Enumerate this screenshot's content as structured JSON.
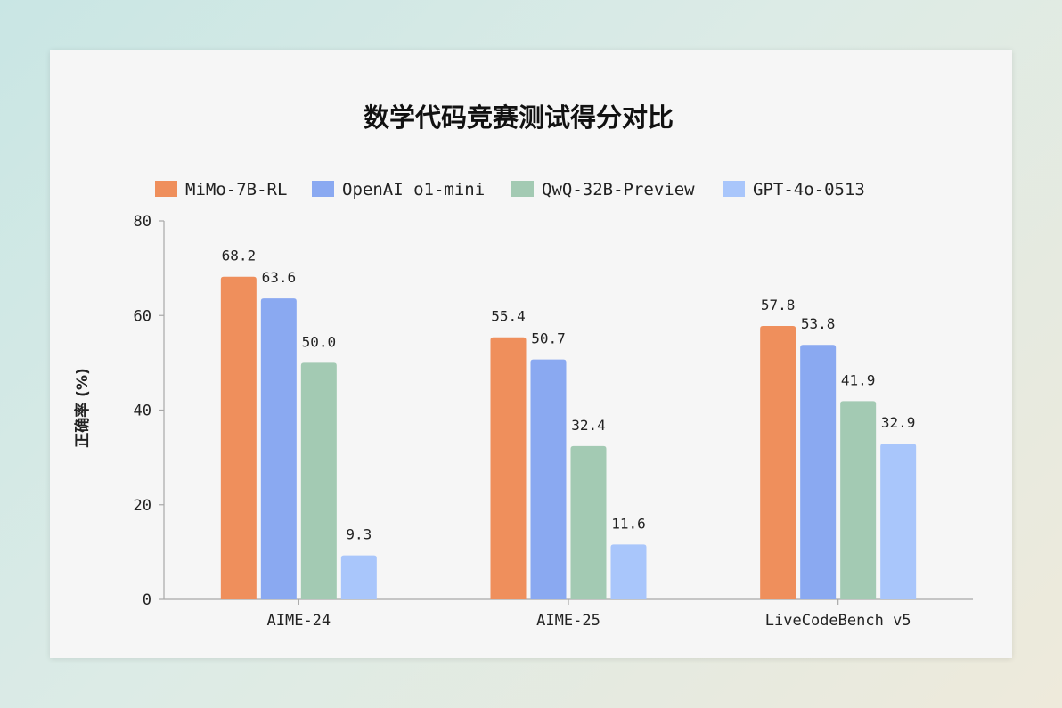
{
  "chart_data": {
    "type": "bar",
    "title": "数学代码竞赛测试得分对比",
    "ylabel": "正确率 (%)",
    "xlabel": "",
    "ylim": [
      0,
      80
    ],
    "yticks": [
      0,
      20,
      40,
      60,
      80
    ],
    "grid": false,
    "legend_position": "top",
    "categories": [
      "AIME-24",
      "AIME-25",
      "LiveCodeBench v5"
    ],
    "series": [
      {
        "name": "MiMo-7B-RL",
        "color": "#ef8f5c",
        "values": [
          68.2,
          55.4,
          57.8
        ]
      },
      {
        "name": "OpenAI o1-mini",
        "color": "#8aa9f1",
        "values": [
          63.6,
          50.7,
          53.8
        ]
      },
      {
        "name": "QwQ-32B-Preview",
        "color": "#a3cab3",
        "values": [
          50.0,
          32.4,
          41.9
        ]
      },
      {
        "name": "GPT-4o-0513",
        "color": "#a9c6fb",
        "values": [
          9.3,
          11.6,
          32.9
        ]
      }
    ]
  }
}
